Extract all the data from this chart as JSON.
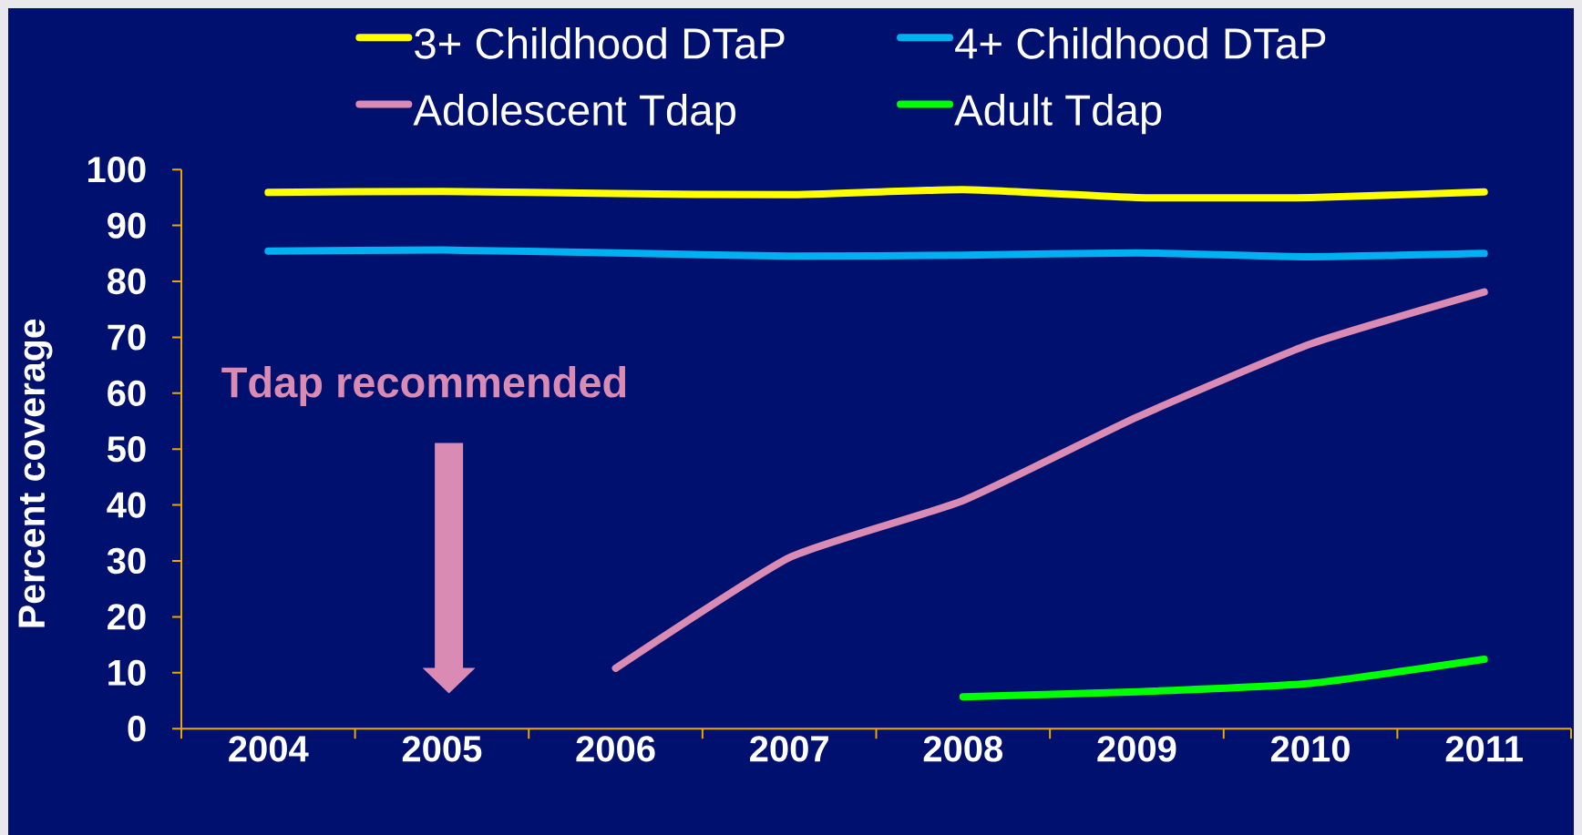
{
  "chart_data": {
    "type": "line",
    "categories": [
      "2004",
      "2005",
      "2006",
      "2007",
      "2008",
      "2009",
      "2010",
      "2011"
    ],
    "series": [
      {
        "name": "3+ Childhood DTaP",
        "color": "#ffff00",
        "values": [
          95.9,
          96.1,
          95.7,
          95.5,
          96.4,
          95.0,
          95.0,
          96.0
        ]
      },
      {
        "name": "4+ Childhood DTaP",
        "color": "#00b0f0",
        "values": [
          85.4,
          85.6,
          85.1,
          84.5,
          84.7,
          85.1,
          84.4,
          85.0
        ]
      },
      {
        "name": "Adolescent Tdap",
        "color": "#da8bb4",
        "values": [
          null,
          null,
          10.8,
          30.6,
          40.8,
          55.7,
          68.8,
          78.1
        ]
      },
      {
        "name": "Adult Tdap",
        "color": "#00ff00",
        "values": [
          null,
          null,
          null,
          null,
          5.7,
          6.6,
          8.1,
          12.4
        ]
      }
    ],
    "ylabel": "Percent coverage",
    "ylim": [
      0,
      100
    ],
    "yticks": [
      0,
      10,
      20,
      30,
      40,
      50,
      60,
      70,
      80,
      90,
      100
    ],
    "legend": "top",
    "marker": "none",
    "line_style": "solid",
    "annotations": [
      "Tdap recommended"
    ]
  }
}
